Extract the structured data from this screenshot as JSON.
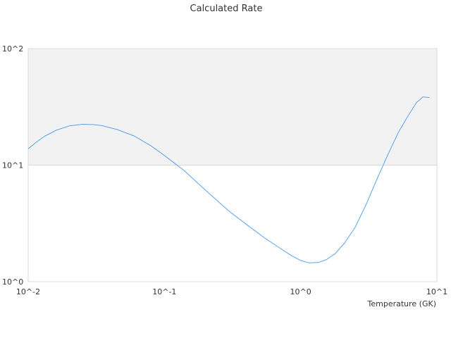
{
  "chart_data": {
    "type": "line",
    "title": "Calculated Rate",
    "xlabel": "Temperature (GK)",
    "ylabel": "",
    "x_scale": "log",
    "y_scale": "log",
    "xlim": [
      0.01,
      10
    ],
    "ylim": [
      1,
      100
    ],
    "x_tick_labels": [
      "10^-2",
      "10^-1",
      "10^0",
      "10^1"
    ],
    "y_tick_labels": [
      "10^0",
      "10^1",
      "10^2"
    ],
    "grid": false,
    "legend": "none",
    "colors": {
      "series": "#5aa3e6",
      "band": "#f2f2f2",
      "axis": "#d9d9d9",
      "text": "#333333"
    },
    "series": [
      {
        "values": [
          [
            0.01,
            13.8
          ],
          [
            0.0115,
            15.8
          ],
          [
            0.0132,
            17.7
          ],
          [
            0.016,
            19.9
          ],
          [
            0.02,
            21.7
          ],
          [
            0.025,
            22.4
          ],
          [
            0.03,
            22.3
          ],
          [
            0.035,
            21.8
          ],
          [
            0.045,
            20.2
          ],
          [
            0.06,
            17.8
          ],
          [
            0.08,
            14.6
          ],
          [
            0.1,
            12.1
          ],
          [
            0.14,
            8.95
          ],
          [
            0.2,
            6.1
          ],
          [
            0.3,
            4.0
          ],
          [
            0.4,
            3.1
          ],
          [
            0.55,
            2.35
          ],
          [
            0.7,
            1.95
          ],
          [
            0.85,
            1.68
          ],
          [
            1.0,
            1.52
          ],
          [
            1.15,
            1.45
          ],
          [
            1.35,
            1.46
          ],
          [
            1.55,
            1.55
          ],
          [
            1.8,
            1.75
          ],
          [
            2.1,
            2.15
          ],
          [
            2.5,
            2.9
          ],
          [
            3.0,
            4.5
          ],
          [
            3.6,
            7.4
          ],
          [
            4.3,
            11.8
          ],
          [
            5.2,
            19.0
          ],
          [
            6.2,
            27.0
          ],
          [
            7.1,
            34.5
          ],
          [
            7.9,
            38.5
          ],
          [
            8.8,
            38.0
          ]
        ]
      }
    ]
  }
}
